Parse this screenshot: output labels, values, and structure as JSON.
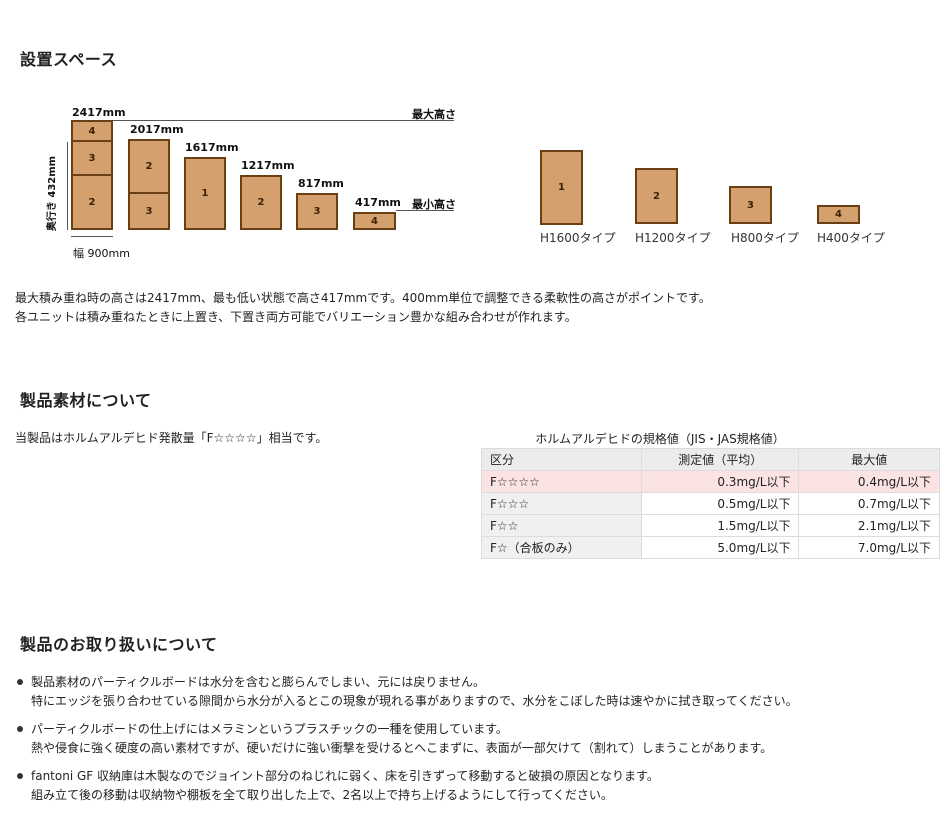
{
  "section1": {
    "title": "設置スペース",
    "dims": {
      "h2417": "2417mm",
      "h2017": "2017mm",
      "h1617": "1617mm",
      "h1217": "1217mm",
      "h817": "817mm",
      "h417": "417mm",
      "max_height": "最大高さ",
      "min_height": "最小高さ",
      "depth": "奥行き 432mm",
      "width": "幅 900mm"
    },
    "stacks": {
      "s1": [
        "4",
        "3",
        "2"
      ],
      "s2": [
        "2",
        "3"
      ],
      "s3": [
        "1"
      ],
      "s4": [
        "2"
      ],
      "s5": [
        "3"
      ],
      "s6": [
        "4"
      ]
    },
    "types": [
      {
        "num": "1",
        "label": "H1600タイプ"
      },
      {
        "num": "2",
        "label": "H1200タイプ"
      },
      {
        "num": "3",
        "label": "H800タイプ"
      },
      {
        "num": "4",
        "label": "H400タイプ"
      }
    ],
    "desc1": "最大積み重ね時の高さは2417mm、最も低い状態で高さ417mmです。400mm単位で調整できる柔軟性の高さがポイントです。",
    "desc2": "各ユニットは積み重ねたときに上置き、下置き両方可能でバリエーション豊かな組み合わせが作れます。"
  },
  "section2": {
    "title": "製品素材について",
    "intro": "当製品はホルムアルデヒド発散量「F☆☆☆☆」相当です。",
    "table_caption": "ホルムアルデヒドの規格値（JIS・JAS規格値）",
    "headers": [
      "区分",
      "測定値（平均）",
      "最大値"
    ],
    "rows": [
      [
        "F☆☆☆☆",
        "0.3mg/L以下",
        "0.4mg/L以下"
      ],
      [
        "F☆☆☆",
        "0.5mg/L以下",
        "0.7mg/L以下"
      ],
      [
        "F☆☆",
        "1.5mg/L以下",
        "2.1mg/L以下"
      ],
      [
        "F☆（合板のみ）",
        "5.0mg/L以下",
        "7.0mg/L以下"
      ]
    ]
  },
  "section3": {
    "title": "製品のお取り扱いについて",
    "items": [
      {
        "line1": "製品素材のパーティクルボードは水分を含むと膨らんでしまい、元には戻りません。",
        "line2": "特にエッジを張り合わせている隙間から水分が入るとこの現象が現れる事がありますので、水分をこぼした時は速やかに拭き取ってください。"
      },
      {
        "line1": "パーティクルボードの仕上げにはメラミンというプラスチックの一種を使用しています。",
        "line2": "熱や侵食に強く硬度の高い素材ですが、硬いだけに強い衝撃を受けるとへこまずに、表面が一部欠けて（割れて）しまうことがあります。"
      },
      {
        "line1": "fantoni GF 収納庫は木製なのでジョイント部分のねじれに弱く、床を引きずって移動すると破損の原因となります。",
        "line2": "組み立て後の移動は収納物や棚板を全て取り出した上で、2名以上で持ち上げるようにして行ってください。"
      }
    ]
  },
  "colors": {
    "box_fill": "#d3a06e",
    "box_border": "#6b3f14",
    "highlight_row": "#fbe3e4"
  }
}
